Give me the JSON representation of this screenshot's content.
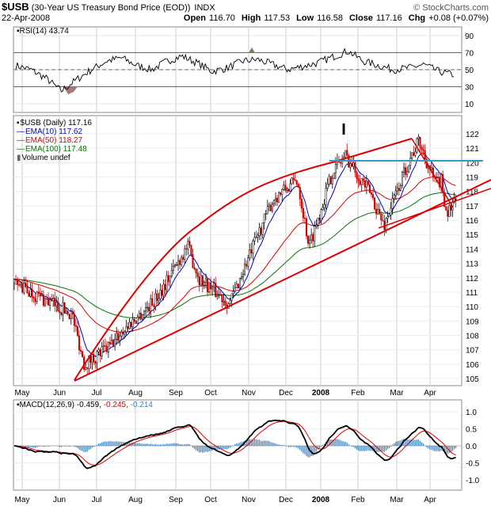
{
  "header": {
    "symbol": "$USB",
    "name": "(30-Year US Treasury Bond Price (EOD))",
    "exchange": "INDX",
    "watermark": "© StockCharts.com",
    "date": "22-Apr-2008",
    "open_label": "Open",
    "open": "116.70",
    "high_label": "High",
    "high": "117.53",
    "low_label": "Low",
    "low": "116.58",
    "close_label": "Close",
    "close": "117.16",
    "chg_label": "Chg",
    "chg": "+0.08 (+0.07%)"
  },
  "rsi_panel": {
    "label": "RSI(14) 43.74",
    "ticks": [
      90,
      70,
      50,
      30,
      10
    ],
    "levels": [
      70,
      50,
      30
    ]
  },
  "price_panel": {
    "legend": [
      {
        "text": "$USB (Daily) 117.16",
        "color": "#000000"
      },
      {
        "text": "EMA(10) 117.62",
        "color": "#0000cc"
      },
      {
        "text": "EMA(50) 118.27",
        "color": "#dd0000"
      },
      {
        "text": "EMA(100) 117.48",
        "color": "#007700"
      },
      {
        "text": "Volume undef",
        "color": "#000000"
      }
    ],
    "ticks": [
      122,
      121,
      120,
      119,
      118,
      117,
      116,
      115,
      114,
      113,
      112,
      111,
      110,
      109,
      108,
      107,
      106,
      105
    ],
    "annotation": "I"
  },
  "macd_panel": {
    "label_prefix": "MACD(12,26,9)",
    "macd_value": "-0.459,",
    "signal_value": "-0.245,",
    "hist_value": "-0.214",
    "ticks": [
      "1.0",
      "0.5",
      "0.0",
      "-0.5",
      "-1.0"
    ]
  },
  "months": [
    "May",
    "Jun",
    "Jul",
    "Aug",
    "Sep",
    "Oct",
    "Nov",
    "Dec",
    "2008",
    "Feb",
    "Mar",
    "Apr"
  ],
  "colors": {
    "trendline": "#dd0000",
    "horizontal_line": "#3399cc",
    "grid": "#cccccc",
    "macd_line": "#000000",
    "signal_line": "#dd0000",
    "histogram": "#3a7fc1"
  },
  "chart_data": {
    "type": "line",
    "price_range": [
      105,
      122.5
    ],
    "rsi_range": [
      0,
      100
    ],
    "macd_range": [
      -1.2,
      1.3
    ],
    "price_anchors": [
      [
        "May",
        111.6
      ],
      [
        "Jun",
        109.5
      ],
      [
        "Jun",
        106.0
      ],
      [
        "Jul",
        107.2
      ],
      [
        "Jul",
        108.3
      ],
      [
        "Aug",
        110.5
      ],
      [
        "Sep",
        114.2
      ],
      [
        "Sep",
        112.0
      ],
      [
        "Oct",
        110.2
      ],
      [
        "Nov",
        115.5
      ],
      [
        "Nov",
        117.5
      ],
      [
        "Dec",
        118.8
      ],
      [
        "Dec",
        114.2
      ],
      [
        "2008",
        119.5
      ],
      [
        "2008",
        120.5
      ],
      [
        "Feb",
        117.8
      ],
      [
        "Feb",
        115.6
      ],
      [
        "Mar",
        120.0
      ],
      [
        "Mar",
        121.5
      ],
      [
        "Apr",
        118.5
      ],
      [
        "Apr",
        118.8
      ],
      [
        "Apr",
        116.5
      ],
      [
        "Apr",
        117.16
      ]
    ],
    "rsi_anchors": [
      55,
      50,
      40,
      25,
      38,
      50,
      60,
      64,
      55,
      50,
      60,
      66,
      58,
      48,
      52,
      60,
      62,
      56,
      50,
      54,
      58,
      65,
      72,
      60,
      55,
      50,
      52,
      56,
      48,
      44
    ]
  }
}
